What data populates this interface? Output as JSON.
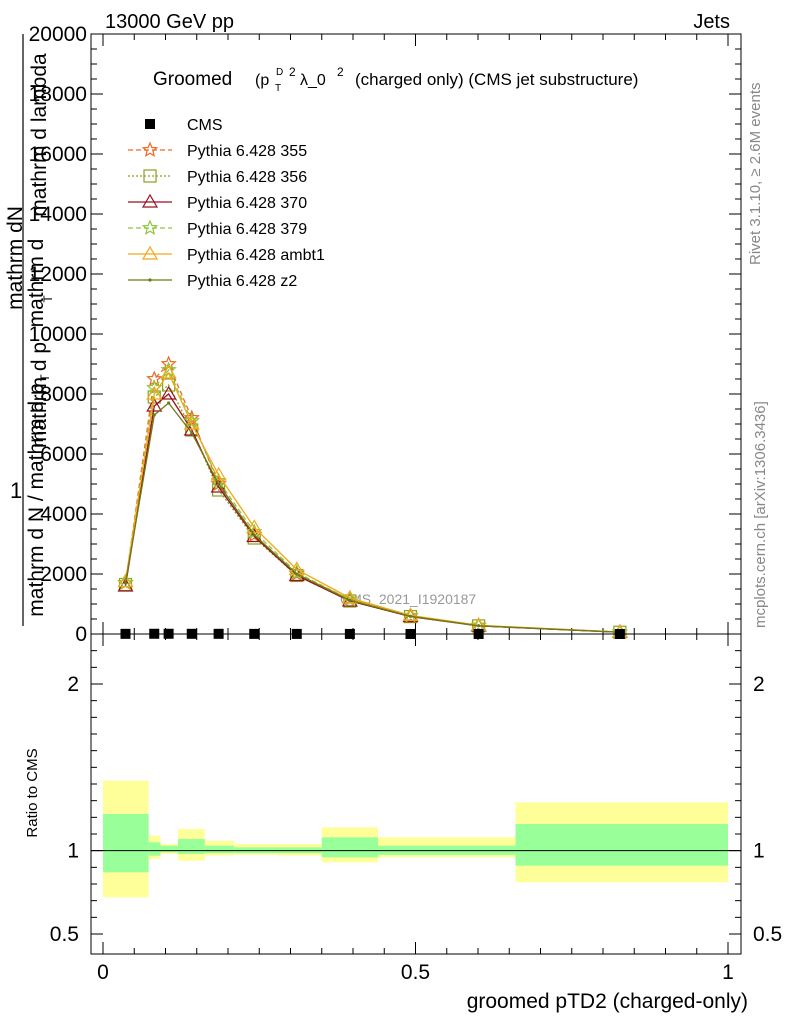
{
  "header": {
    "left": "13000 GeV pp",
    "right": "Jets"
  },
  "title": {
    "prefix": "Groomed",
    "formula": "(p",
    "formula_sub": "T",
    "formula_sup": "D",
    "formula_exp": "2",
    "formula_rest": "λ_0",
    "formula_exp2": "2",
    "suffix": "(charged only) (CMS jet substructure)"
  },
  "side_labels": {
    "rivet": "Rivet 3.1.10, ≥ 2.6M events",
    "mcplots": "mcplots.cern.ch [arXiv:1306.3436]"
  },
  "watermark": "CMS_2021_I1920187",
  "ylabel_main": {
    "top": "mathrm dN",
    "mid1": "mathrm d p",
    "mid1_sub": "T",
    "mid2": "mathrm d lambda",
    "one": "1",
    "bottom": "mathrm d N / mathrm d p",
    "bottom_sub": "T",
    "bottom_rest": "mathrm d"
  },
  "ylabel_ratio": "Ratio to CMS",
  "xlabel": "groomed pTD2 (charged-only)",
  "chart_data": {
    "type": "line",
    "main_ylim": [
      0,
      20000
    ],
    "main_yticks": [
      0,
      2000,
      4000,
      6000,
      8000,
      10000,
      12000,
      14000,
      16000,
      18000,
      20000
    ],
    "main_ytick_labels": [
      "0",
      "2000",
      "4000",
      "6000",
      "8000",
      "10000",
      "12000",
      "14000",
      "16000",
      "18000",
      "20000"
    ],
    "ratio_ylim": [
      0.38,
      2.3
    ],
    "ratio_yticks": [
      0.5,
      1,
      2
    ],
    "ratio_ytick_labels": [
      "0.5",
      "1",
      "2"
    ],
    "xlim": [
      0,
      1
    ],
    "xticks": [
      0,
      0.5,
      1
    ],
    "xtick_labels": [
      "0",
      "0.5",
      "1"
    ],
    "x": [
      0.036,
      0.082,
      0.105,
      0.142,
      0.185,
      0.242,
      0.31,
      0.395,
      0.492,
      0.601,
      0.827
    ],
    "cms": [
      5,
      8,
      8,
      6,
      6,
      4,
      3,
      2,
      1,
      1,
      0
    ],
    "series": [
      {
        "name": "Pythia 6.428 355",
        "color": "#ee6a22",
        "dash": "5,3",
        "marker": "star",
        "values": [
          1700,
          8500,
          9000,
          7200,
          5000,
          3300,
          2000,
          1150,
          600,
          280,
          60
        ]
      },
      {
        "name": "Pythia 6.428 356",
        "color": "#8aa21f",
        "dash": "2,2",
        "marker": "square",
        "values": [
          1650,
          7900,
          8300,
          6800,
          4800,
          3200,
          1950,
          1100,
          580,
          270,
          60
        ]
      },
      {
        "name": "Pythia 6.428 370",
        "color": "#9a1020",
        "dash": "",
        "marker": "triangle",
        "values": [
          1600,
          7600,
          8000,
          6800,
          4900,
          3250,
          1950,
          1100,
          580,
          270,
          60
        ]
      },
      {
        "name": "Pythia 6.428 379",
        "color": "#8ec63f",
        "dash": "5,3",
        "marker": "star",
        "values": [
          1700,
          8200,
          8800,
          7100,
          5100,
          3400,
          2050,
          1150,
          610,
          280,
          60
        ]
      },
      {
        "name": "Pythia 6.428 ambt1",
        "color": "#f2a818",
        "dash": "",
        "marker": "triangle",
        "values": [
          1750,
          8000,
          8700,
          7000,
          5300,
          3550,
          2150,
          1200,
          620,
          290,
          65
        ]
      },
      {
        "name": "Pythia 6.428 z2",
        "color": "#6e7a12",
        "dash": "",
        "marker": "dot",
        "values": [
          1700,
          7300,
          7700,
          6700,
          5000,
          3300,
          2000,
          1120,
          590,
          275,
          60
        ]
      }
    ],
    "ratio_band_bins": [
      0.0,
      0.073,
      0.092,
      0.12,
      0.163,
      0.21,
      0.28,
      0.35,
      0.44,
      0.66,
      1.0
    ],
    "ratio_band_inner": [
      [
        0.87,
        1.22
      ],
      [
        0.97,
        1.05
      ],
      [
        0.99,
        1.03
      ],
      [
        0.98,
        1.07
      ],
      [
        0.985,
        1.03
      ],
      [
        0.985,
        1.02
      ],
      [
        0.985,
        1.02
      ],
      [
        0.96,
        1.08
      ],
      [
        0.975,
        1.03
      ],
      [
        0.91,
        1.16
      ],
      [
        0.91,
        1.16
      ]
    ],
    "ratio_band_outer": [
      [
        0.72,
        1.42
      ],
      [
        0.95,
        1.09
      ],
      [
        0.98,
        1.04
      ],
      [
        0.94,
        1.13
      ],
      [
        0.97,
        1.06
      ],
      [
        0.975,
        1.04
      ],
      [
        0.97,
        1.04
      ],
      [
        0.93,
        1.14
      ],
      [
        0.96,
        1.08
      ],
      [
        0.81,
        1.29
      ],
      [
        0.81,
        1.29
      ]
    ]
  }
}
